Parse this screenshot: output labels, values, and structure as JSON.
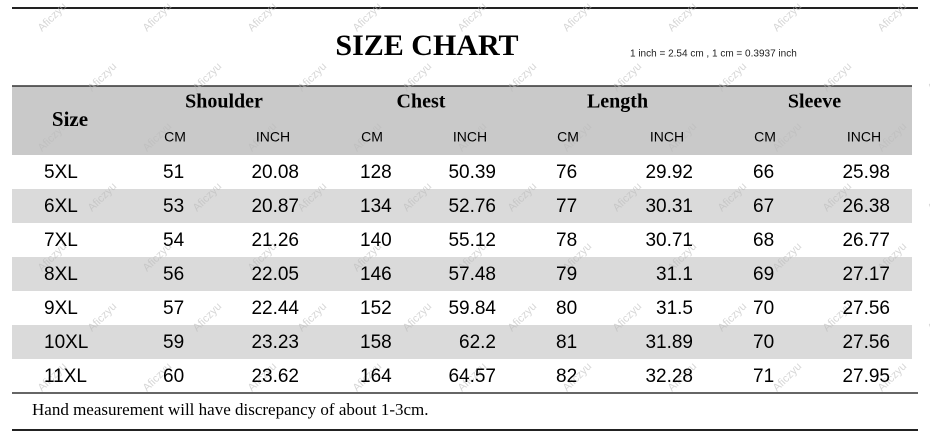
{
  "header": {
    "title": "SIZE CHART",
    "note": "1 inch = 2.54 cm , 1 cm = 0.3937 inch"
  },
  "watermark": "Aficzyu",
  "table": {
    "size_label": "Size",
    "groups": [
      "Shoulder",
      "Chest",
      "Length",
      "Sleeve"
    ],
    "units": [
      "CM",
      "INCH",
      "CM",
      "INCH",
      "CM",
      "INCH",
      "CM",
      "INCH"
    ],
    "rows": [
      [
        "5XL",
        51,
        20.08,
        128,
        50.39,
        76,
        29.92,
        66,
        25.98
      ],
      [
        "6XL",
        53,
        20.87,
        134,
        52.76,
        77,
        30.31,
        67,
        26.38
      ],
      [
        "7XL",
        54,
        21.26,
        140,
        55.12,
        78,
        30.71,
        68,
        26.77
      ],
      [
        "8XL",
        56,
        22.05,
        146,
        57.48,
        79,
        31.1,
        69,
        27.17
      ],
      [
        "9XL",
        57,
        22.44,
        152,
        59.84,
        80,
        31.5,
        70,
        27.56
      ],
      [
        "10XL",
        59,
        23.23,
        158,
        62.2,
        81,
        31.89,
        70,
        27.56
      ],
      [
        "11XL",
        60,
        23.62,
        164,
        64.57,
        82,
        32.28,
        71,
        27.95
      ]
    ]
  },
  "footnote": "Hand measurement will have discrepancy of about 1-3cm."
}
